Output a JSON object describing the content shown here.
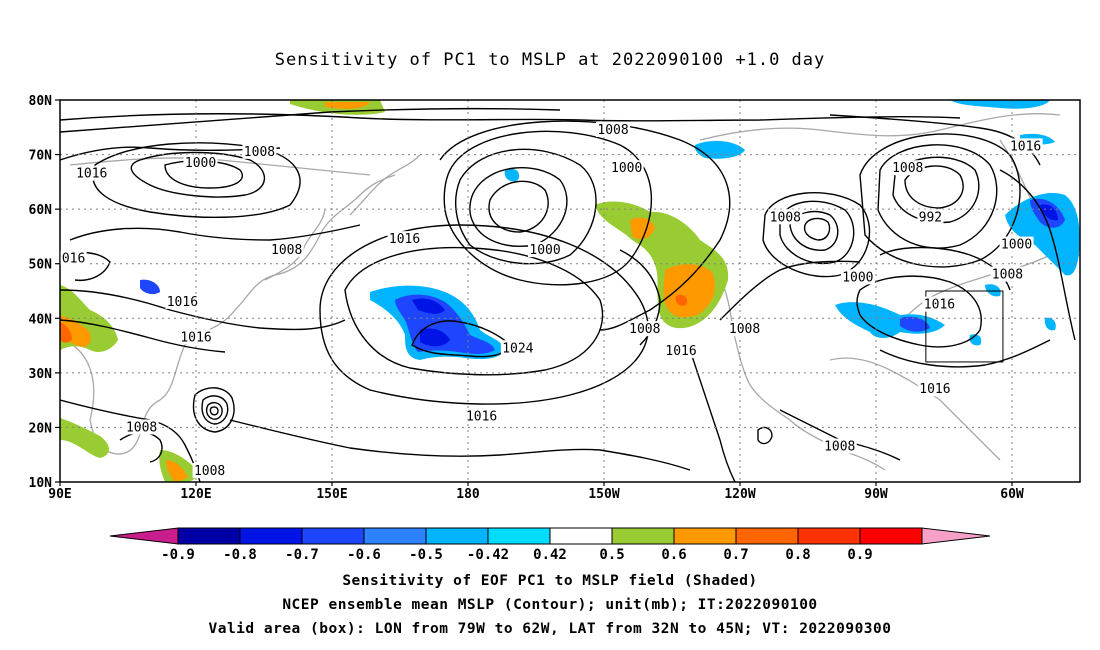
{
  "title": "Sensitivity of PC1 to MSLP at 2022090100 +1.0 day",
  "lat_labels": [
    "80N",
    "70N",
    "60N",
    "50N",
    "40N",
    "30N",
    "20N",
    "10N"
  ],
  "lon_labels": [
    "90E",
    "120E",
    "150E",
    "180",
    "150W",
    "120W",
    "90W",
    "60W"
  ],
  "contour_labels": [
    {
      "text": "1008",
      "lon": 212,
      "lat": 74.5
    },
    {
      "text": "1000",
      "lon": 215,
      "lat": 67.5
    },
    {
      "text": "1008",
      "lon": 277,
      "lat": 67.5
    },
    {
      "text": "1016",
      "lon": 303,
      "lat": 71.5
    },
    {
      "text": "1016",
      "lon": 97,
      "lat": 66.5
    },
    {
      "text": "1000",
      "lon": 121,
      "lat": 68.5
    },
    {
      "text": "1008",
      "lon": 134,
      "lat": 70.5
    },
    {
      "text": "1016",
      "lon": 166,
      "lat": 54.5
    },
    {
      "text": "1008",
      "lon": 140,
      "lat": 52.5
    },
    {
      "text": "1000",
      "lon": 197,
      "lat": 52.5
    },
    {
      "text": "1008",
      "lon": 250,
      "lat": 58.5
    },
    {
      "text": "992",
      "lon": 282,
      "lat": 58.5
    },
    {
      "text": "1000",
      "lon": 301,
      "lat": 53.5
    },
    {
      "text": "1008",
      "lon": 299,
      "lat": 48.0
    },
    {
      "text": "1000",
      "lon": 266,
      "lat": 47.5
    },
    {
      "text": "1016",
      "lon": 284,
      "lat": 42.5
    },
    {
      "text": "016",
      "lon": 93,
      "lat": 51.0
    },
    {
      "text": "1016",
      "lon": 117,
      "lat": 43.0
    },
    {
      "text": "1016",
      "lon": 120,
      "lat": 36.5
    },
    {
      "text": "1024",
      "lon": 191,
      "lat": 34.5
    },
    {
      "text": "1008",
      "lon": 219,
      "lat": 38.0
    },
    {
      "text": "1016",
      "lon": 227,
      "lat": 34.0
    },
    {
      "text": "1008",
      "lon": 241,
      "lat": 38.0
    },
    {
      "text": "1016",
      "lon": 283,
      "lat": 27.0
    },
    {
      "text": "1016",
      "lon": 183,
      "lat": 22.0
    },
    {
      "text": "1008",
      "lon": 108,
      "lat": 20.0
    },
    {
      "text": "1008",
      "lon": 123,
      "lat": 12.0
    },
    {
      "text": "1008",
      "lon": 262,
      "lat": 16.5
    }
  ],
  "colorbar": {
    "labels": [
      "-0.9",
      "-0.8",
      "-0.7",
      "-0.6",
      "-0.5",
      "-0.42",
      "0.42",
      "0.5",
      "0.6",
      "0.7",
      "0.8",
      "0.9"
    ],
    "colors": [
      "#c81d8a",
      "#0000a6",
      "#0014e6",
      "#1e46ff",
      "#2c82ff",
      "#00b4ff",
      "#00dcff",
      "#ffffff",
      "#99cc33",
      "#ff9900",
      "#ff6600",
      "#ff3300",
      "#ff0000",
      "#f7a0c8"
    ]
  },
  "footer": {
    "line1": "Sensitivity of EOF PC1 to MSLP field (Shaded)",
    "line2": "NCEP ensemble mean MSLP (Contour); unit(mb); IT:2022090100",
    "line3": "Valid area (box): LON from 79W to 62W, LAT from 32N to 45N; VT: 2022090300"
  }
}
